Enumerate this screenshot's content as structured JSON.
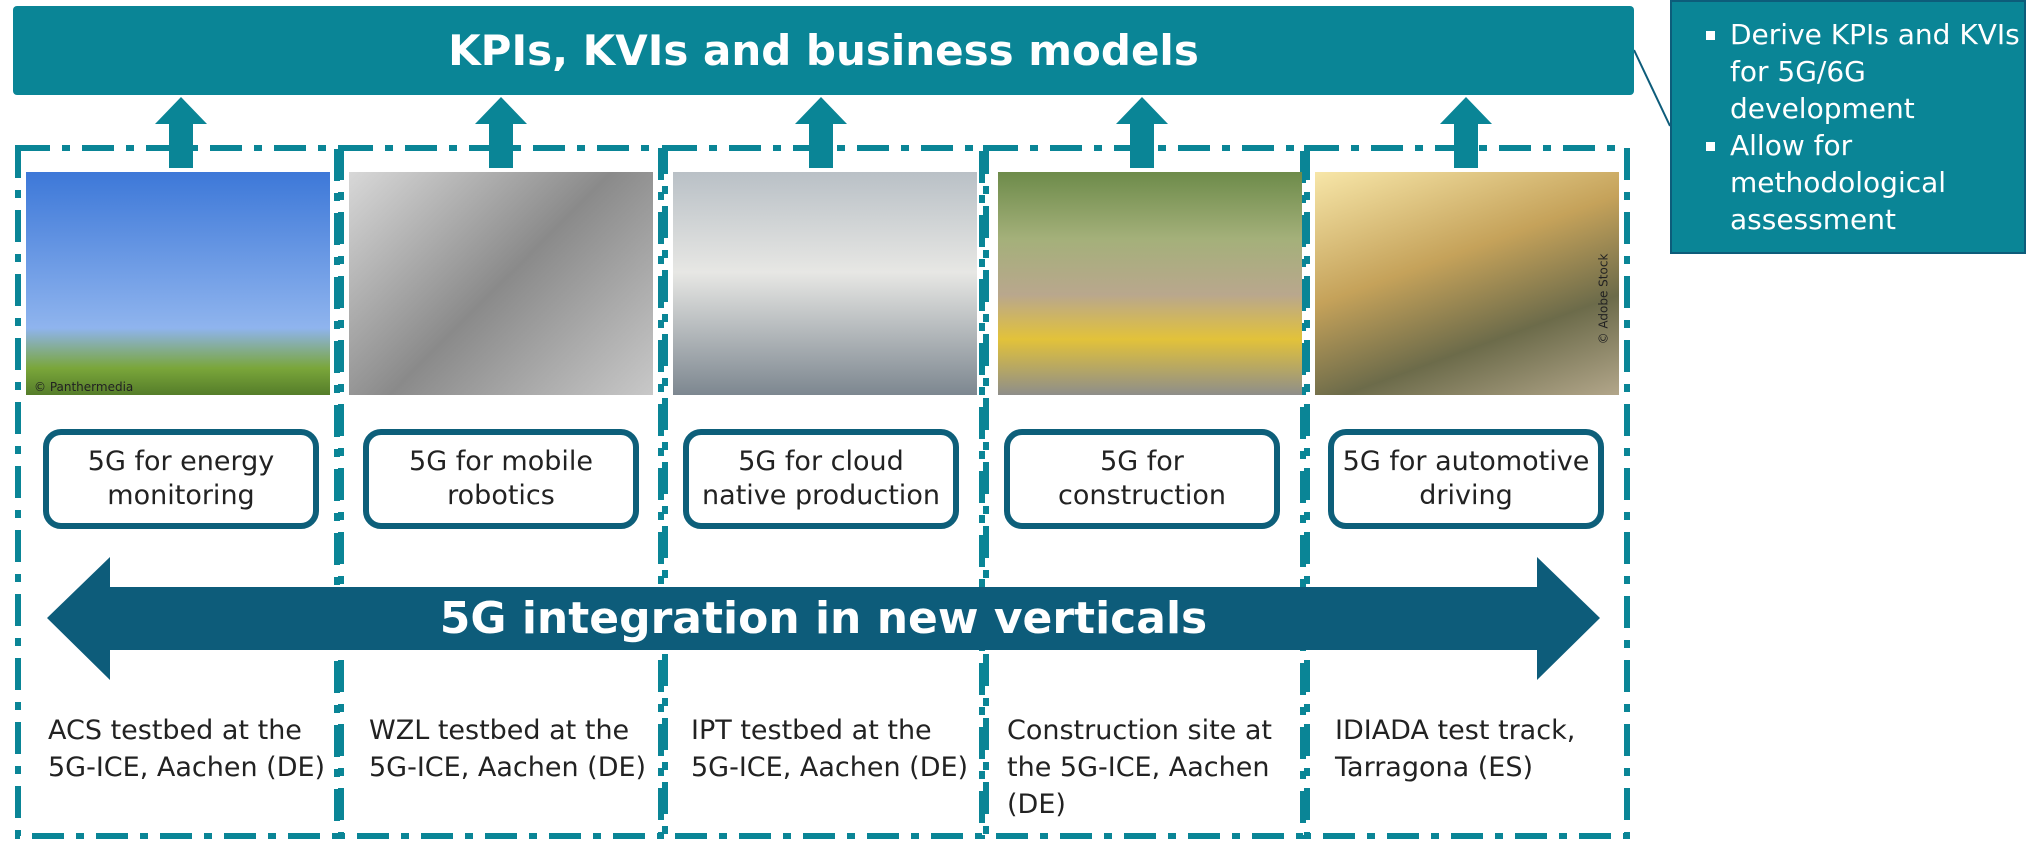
{
  "header": {
    "title": "KPIs, KVIs and business models"
  },
  "callout": {
    "bullets": [
      "Derive KPIs and KVIs for 5G/6G development",
      "Allow for methodological assessment"
    ]
  },
  "columns": [
    {
      "image_credit": "© Panthermedia",
      "label": "5G for energy monitoring",
      "location": "ACS testbed at the 5G-ICE, Aachen (DE)"
    },
    {
      "label": "5G for mobile robotics",
      "location": "WZL testbed at the 5G-ICE, Aachen (DE)"
    },
    {
      "label": "5G for cloud native production",
      "location": "IPT testbed at the 5G-ICE, Aachen (DE)"
    },
    {
      "label": "5G for construction",
      "location": "Construction site at the 5G-ICE, Aachen (DE)"
    },
    {
      "image_credit": "© Adobe Stock",
      "label": "5G for automotive driving",
      "location": "IDIADA test track, Tarragona (ES)"
    }
  ],
  "arrow": {
    "label": "5G integration in new verticals"
  }
}
